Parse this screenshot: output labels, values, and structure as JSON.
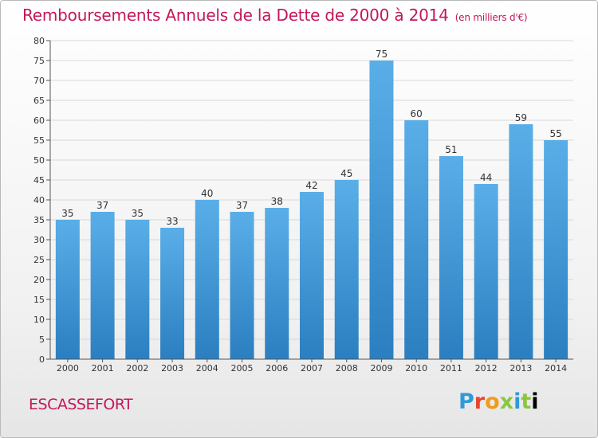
{
  "header": {
    "title": "Remboursements Annuels de la Dette de 2000 à 2014",
    "subtitle": "(en milliers d'€)"
  },
  "footer": {
    "commune": "ESCASSEFORT",
    "logo_letters": [
      "P",
      "r",
      "o",
      "x",
      "i",
      "t",
      "i"
    ]
  },
  "colors": {
    "title": "#c2185b",
    "bar_top": "#5aaee8",
    "bar_bottom": "#2b7fc0",
    "grid": "#d8d8d8"
  },
  "chart_data": {
    "type": "bar",
    "title": "Remboursements Annuels de la Dette de 2000 à 2014",
    "xlabel": "",
    "ylabel": "",
    "ylim": [
      0,
      80
    ],
    "yticks": [
      0,
      5,
      10,
      15,
      20,
      25,
      30,
      35,
      40,
      45,
      50,
      55,
      60,
      65,
      70,
      75,
      80
    ],
    "grid": true,
    "categories": [
      "2000",
      "2001",
      "2002",
      "2003",
      "2004",
      "2005",
      "2006",
      "2007",
      "2008",
      "2009",
      "2010",
      "2011",
      "2012",
      "2013",
      "2014"
    ],
    "values": [
      35,
      37,
      35,
      33,
      40,
      37,
      38,
      42,
      45,
      75,
      60,
      51,
      44,
      59,
      55
    ]
  }
}
